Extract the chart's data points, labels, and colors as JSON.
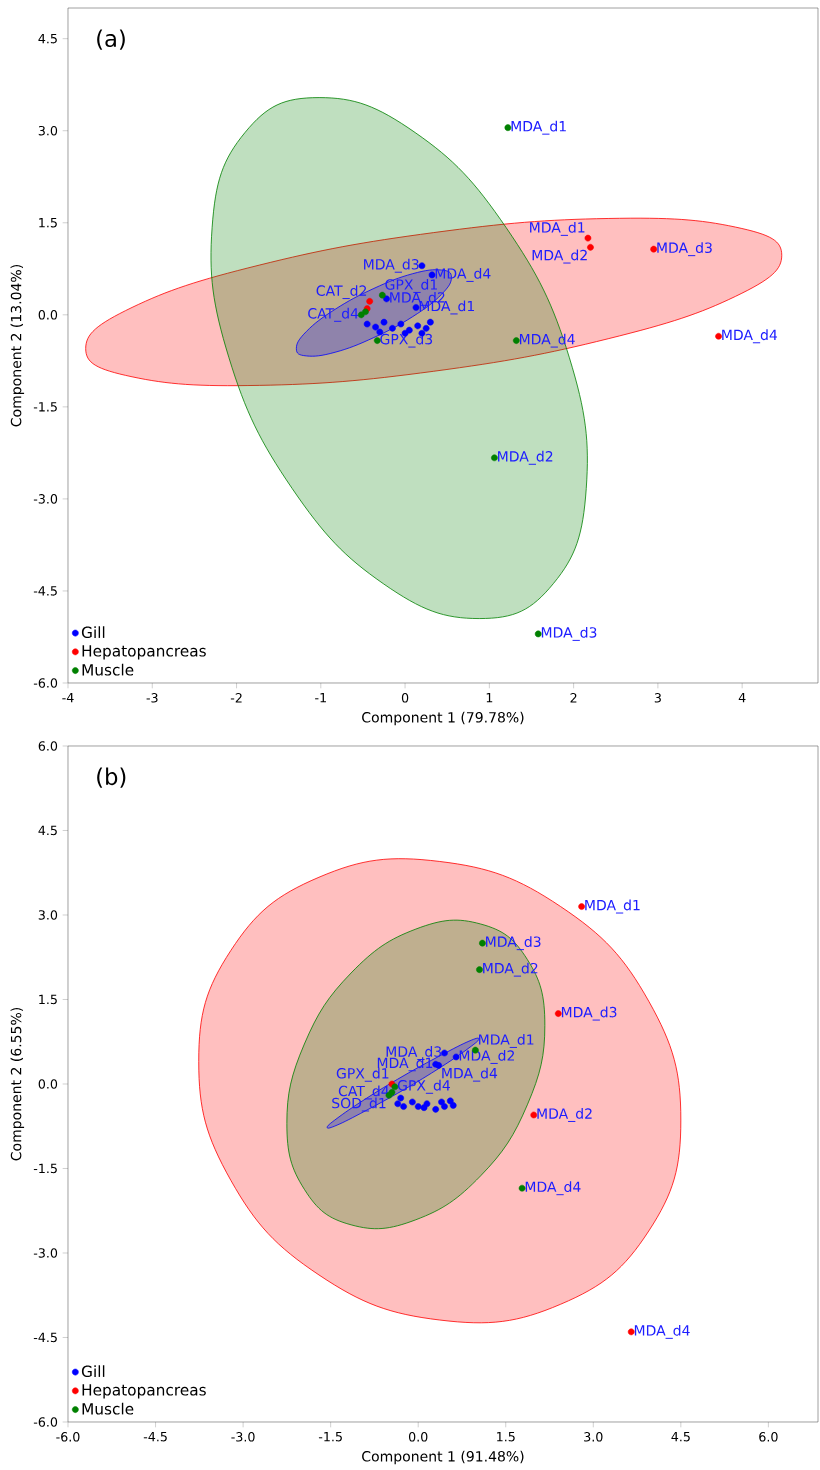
{
  "chart_data": [
    {
      "type": "scatter",
      "title": "(a)",
      "xlabel": "Component 1 (79.78%)",
      "ylabel": "Component 2 (13.04%)",
      "xlim": [
        -4,
        4.9
      ],
      "ylim": [
        -6,
        5
      ],
      "xticks": [
        -4,
        -3,
        -2,
        -1,
        0,
        1,
        2,
        3,
        4
      ],
      "yticks": [
        {
          "value": -6,
          "label": "-6.0"
        },
        {
          "value": -4.5,
          "label": "-4.5"
        },
        {
          "value": -3,
          "label": "-3.0"
        },
        {
          "value": -1.5,
          "label": "-1.5"
        },
        {
          "value": 0,
          "label": "0.0"
        },
        {
          "value": 1.5,
          "label": "1.5"
        },
        {
          "value": 3,
          "label": "3.0"
        },
        {
          "value": 4.5,
          "label": "4.5"
        }
      ],
      "legend": "bottom left",
      "series": [
        {
          "type": "area",
          "color": "#ff0000",
          "x": [
            4.47,
            3.92,
            2.41,
            0.34,
            -1.73,
            -3.24,
            -3.79,
            -3.24,
            -1.73,
            0.34,
            2.41,
            3.92
          ],
          "values": [
            0.97,
            1.43,
            1.57,
            1.34,
            0.81,
            0.12,
            -0.55,
            -1.01,
            -1.15,
            -0.92,
            -0.39,
            0.3
          ]
        },
        {
          "type": "area",
          "color": "#008000",
          "x": [
            -1.02,
            0.12,
            1.2,
            1.95,
            2.15,
            1.76,
            0.88,
            -0.26,
            -1.34,
            -2.09,
            -2.29,
            -1.9
          ],
          "values": [
            3.54,
            2.97,
            1.42,
            -0.7,
            -2.83,
            -4.38,
            -4.95,
            -4.38,
            -2.83,
            -0.7,
            1.42,
            2.97
          ]
        },
        {
          "type": "area",
          "color": "#0000ff",
          "x": [
            0.55,
            0.43,
            0.09,
            -0.37,
            -0.83,
            -1.17,
            -1.29,
            -1.17,
            -0.83,
            -0.37,
            0.09,
            0.43
          ],
          "values": [
            0.61,
            0.73,
            0.67,
            0.43,
            0.09,
            -0.27,
            -0.55,
            -0.67,
            -0.61,
            -0.37,
            -0.03,
            0.33
          ]
        },
        {
          "name": "Gill",
          "marker": "circle",
          "color": "#0000ff",
          "x": [
            0.2,
            0.32,
            0.13,
            -0.22,
            -0.45,
            -0.35,
            -0.25,
            -0.15,
            -0.05,
            0.05,
            0.15,
            0.25,
            0.3,
            -0.3,
            0.0,
            0.2
          ],
          "values": [
            0.8,
            0.65,
            0.12,
            0.26,
            -0.15,
            -0.2,
            -0.12,
            -0.22,
            -0.15,
            -0.25,
            -0.18,
            -0.22,
            -0.12,
            -0.28,
            -0.3,
            -0.3
          ]
        },
        {
          "name": "Hepatopancreas",
          "marker": "circle",
          "color": "#ff0000",
          "x": [
            2.17,
            2.2,
            2.95,
            3.72,
            -0.42,
            -0.45
          ],
          "values": [
            1.25,
            1.1,
            1.07,
            -0.35,
            0.22,
            0.1
          ]
        },
        {
          "name": "Muscle",
          "marker": "circle",
          "color": "#008000",
          "x": [
            1.22,
            1.32,
            1.06,
            1.58,
            -0.27,
            -0.33,
            -0.52,
            -0.47
          ],
          "values": [
            3.05,
            -0.42,
            -2.33,
            -5.2,
            0.32,
            -0.42,
            0.0,
            0.05
          ]
        }
      ],
      "annotations": [
        {
          "text": "MDA_d1",
          "x": 1.22,
          "y": 3.05
        },
        {
          "text": "MDA_d1",
          "x": 2.17,
          "y": 1.25
        },
        {
          "text": "MDA_d2",
          "x": 2.2,
          "y": 1.1
        },
        {
          "text": "MDA_d3",
          "x": 2.95,
          "y": 1.07
        },
        {
          "text": "MDA_d4",
          "x": 3.72,
          "y": -0.35
        },
        {
          "text": "MDA_d4",
          "x": 1.32,
          "y": -0.42
        },
        {
          "text": "MDA_d2",
          "x": 1.06,
          "y": -2.33
        },
        {
          "text": "MDA_d3",
          "x": 1.58,
          "y": -5.2
        },
        {
          "text": "MDA_d3",
          "x": 0.2,
          "y": 0.8
        },
        {
          "text": "MDA_d4",
          "x": 0.32,
          "y": 0.65
        },
        {
          "text": "MDA_d1",
          "x": 0.13,
          "y": 0.12
        },
        {
          "text": "MDA_d2",
          "x": -0.22,
          "y": 0.26
        },
        {
          "text": "CAT_d2",
          "x": -0.42,
          "y": 0.22
        },
        {
          "text": "CAT_d4",
          "x": -0.52,
          "y": 0.0
        },
        {
          "text": "GPX_d3",
          "x": -0.33,
          "y": -0.42
        },
        {
          "text": "GPX_d1",
          "x": -0.27,
          "y": 0.32
        }
      ]
    },
    {
      "type": "scatter",
      "title": "(b)",
      "xlabel": "Component 1 (91.48%)",
      "ylabel": "Component 2 (6.55%)",
      "xlim": [
        -6,
        6.85
      ],
      "ylim": [
        -6,
        6
      ],
      "xticks": [
        {
          "value": -6,
          "label": "-6.0"
        },
        {
          "value": -4.5,
          "label": "-4.5"
        },
        {
          "value": -3,
          "label": "-3.0"
        },
        {
          "value": -1.5,
          "label": "-1.5"
        },
        {
          "value": 0,
          "label": "0.0"
        },
        {
          "value": 1.5,
          "label": "1.5"
        },
        {
          "value": 3,
          "label": "3.0"
        },
        {
          "value": 4.5,
          "label": "4.5"
        },
        {
          "value": 6,
          "label": "6.0"
        }
      ],
      "yticks": [
        {
          "value": -6,
          "label": "-6.0"
        },
        {
          "value": -4.5,
          "label": "-4.5"
        },
        {
          "value": -3,
          "label": "-3.0"
        },
        {
          "value": -1.5,
          "label": "-1.5"
        },
        {
          "value": 0,
          "label": "0.0"
        },
        {
          "value": 1.5,
          "label": "1.5"
        },
        {
          "value": 3,
          "label": "3.0"
        },
        {
          "value": 4.5,
          "label": "4.5"
        },
        {
          "value": 6,
          "label": "6.0"
        }
      ],
      "legend": "bottom left",
      "series": [
        {
          "type": "area",
          "color": "#ff0000",
          "x": [
            4.5,
            3.95,
            2.44,
            0.37,
            -1.7,
            -3.21,
            -3.76,
            -3.21,
            -1.7,
            0.37,
            2.44,
            3.95
          ],
          "values": [
            -0.64,
            1.47,
            3.15,
            3.95,
            3.67,
            2.37,
            0.4,
            -1.71,
            -3.39,
            -4.19,
            -3.91,
            -2.61
          ]
        },
        {
          "type": "area",
          "color": "#008000",
          "x": [
            2.17,
            1.87,
            1.07,
            -0.04,
            -1.15,
            -1.95,
            -2.25,
            -1.95,
            -1.15,
            -0.04,
            1.07,
            1.87
          ],
          "values": [
            1.04,
            2.21,
            2.84,
            2.75,
            1.97,
            0.71,
            -0.7,
            -1.87,
            -2.5,
            -2.41,
            -1.63,
            -0.37
          ]
        },
        {
          "type": "area",
          "color": "#0000ff",
          "x": [
            1.04,
            0.87,
            0.39,
            -0.26,
            -0.91,
            -1.39,
            -1.56,
            -1.39,
            -0.91,
            -0.26,
            0.39,
            0.87
          ],
          "values": [
            0.8,
            0.76,
            0.51,
            0.14,
            -0.27,
            -0.61,
            -0.77,
            -0.73,
            -0.48,
            -0.11,
            0.3,
            0.64
          ]
        },
        {
          "name": "Gill",
          "marker": "circle",
          "color": "#0000ff",
          "x": [
            0.45,
            0.3,
            0.35,
            0.65,
            -0.35,
            -0.25,
            -0.1,
            0.0,
            0.15,
            0.3,
            0.45,
            0.55,
            0.6,
            -0.3,
            0.1,
            0.4
          ],
          "values": [
            0.55,
            0.35,
            0.33,
            0.48,
            -0.35,
            -0.4,
            -0.32,
            -0.4,
            -0.35,
            -0.45,
            -0.4,
            -0.3,
            -0.38,
            -0.25,
            -0.42,
            -0.32
          ]
        },
        {
          "name": "Hepatopancreas",
          "marker": "circle",
          "color": "#ff0000",
          "x": [
            2.8,
            2.4,
            1.98,
            3.65,
            -0.45
          ],
          "values": [
            3.15,
            1.25,
            -0.55,
            -4.4,
            0.0
          ]
        },
        {
          "name": "Muscle",
          "marker": "circle",
          "color": "#008000",
          "x": [
            1.1,
            1.05,
            0.98,
            1.78,
            -0.45,
            -0.4,
            -0.5
          ],
          "values": [
            2.5,
            2.03,
            0.6,
            -1.85,
            -0.15,
            -0.05,
            -0.2
          ]
        }
      ],
      "annotations": [
        {
          "text": "MDA_d1",
          "x": 2.8,
          "y": 3.15
        },
        {
          "text": "MDA_d3",
          "x": 1.1,
          "y": 2.5
        },
        {
          "text": "MDA_d2",
          "x": 1.05,
          "y": 2.03
        },
        {
          "text": "MDA_d3",
          "x": 2.4,
          "y": 1.25
        },
        {
          "text": "MDA_d1",
          "x": 0.98,
          "y": 0.6
        },
        {
          "text": "MDA_d2",
          "x": 1.98,
          "y": -0.55
        },
        {
          "text": "MDA_d4",
          "x": 1.78,
          "y": -1.85
        },
        {
          "text": "MDA_d4",
          "x": 3.65,
          "y": -4.4
        },
        {
          "text": "MDA_d3",
          "x": 0.45,
          "y": 0.55
        },
        {
          "text": "MDA_d1",
          "x": 0.3,
          "y": 0.35
        },
        {
          "text": "MDA_d4",
          "x": 0.35,
          "y": 0.33
        },
        {
          "text": "MDA_d2",
          "x": 0.65,
          "y": 0.48
        },
        {
          "text": "GPX_d1",
          "x": -0.45,
          "y": 0.0
        },
        {
          "text": "CAT_d4",
          "x": -0.45,
          "y": -0.15
        },
        {
          "text": "SOD_d1",
          "x": -0.5,
          "y": -0.2
        },
        {
          "text": "GPX_d4",
          "x": -0.4,
          "y": -0.05
        }
      ]
    }
  ]
}
